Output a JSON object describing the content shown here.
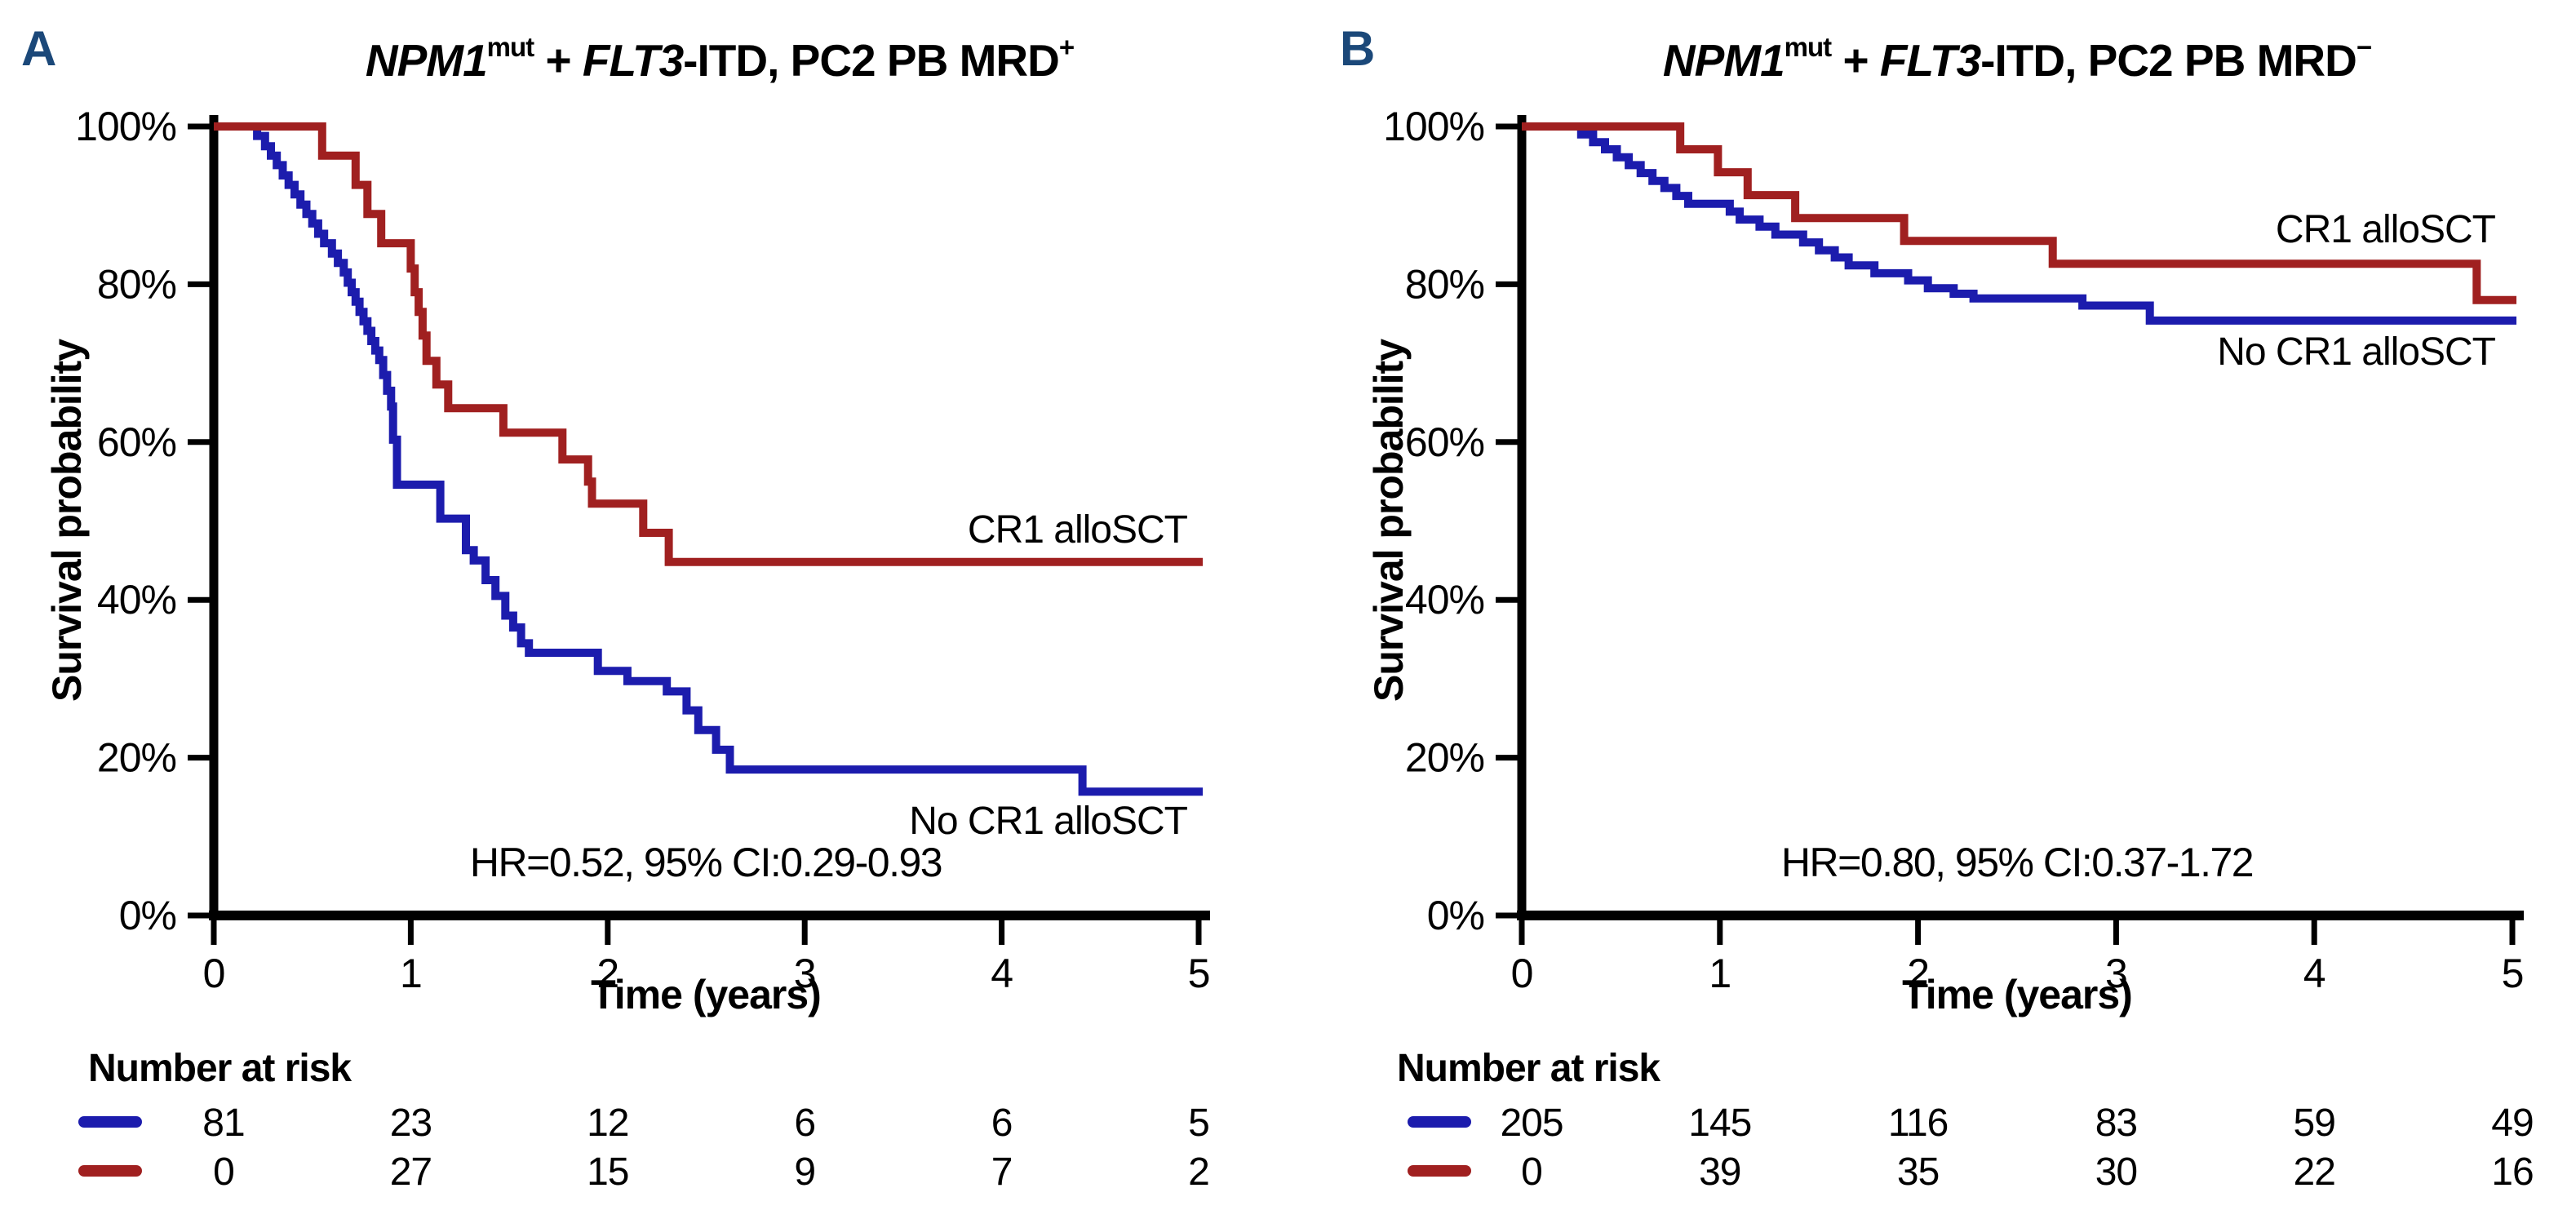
{
  "figure_type": "kaplan-meier-survival-figure",
  "colors": {
    "background": "#ffffff",
    "axis": "#000000",
    "text": "#000000",
    "panel_letter": "#1b4879",
    "blue_series": "#1c1cad",
    "red_series": "#a02020"
  },
  "chart_data": [
    {
      "type": "line",
      "subtype": "kaplan-meier-step",
      "panel_letter": "A",
      "title_parts": {
        "gene1": "NPM1",
        "sup1": "mut",
        "mid": " + ",
        "gene2": "FLT3",
        "tail": "-ITD, PC2 PB MRD",
        "sup2": "+"
      },
      "title_plain": "NPM1mut + FLT3-ITD, PC2 PB MRD+",
      "xlabel": "Time (years)",
      "ylabel": "Survival probability",
      "xlim": [
        0,
        5
      ],
      "ylim": [
        0,
        100
      ],
      "xticks": [
        0,
        1,
        2,
        3,
        4,
        5
      ],
      "ytick_labels": [
        "100%",
        "80%",
        "60%",
        "40%",
        "20%",
        "0%"
      ],
      "annotation": "HR=0.52, 95% CI:0.29-0.93",
      "grid": false,
      "curve_label_position": "right-of-plot",
      "series": [
        {
          "name": "No CR1 alloSCT",
          "color_key": "blue_series",
          "start": [
            0,
            100
          ],
          "drops": [
            [
              0.22,
              98.8
            ],
            [
              0.26,
              97.5
            ],
            [
              0.29,
              96.3
            ],
            [
              0.32,
              95.1
            ],
            [
              0.35,
              93.8
            ],
            [
              0.38,
              92.6
            ],
            [
              0.41,
              91.4
            ],
            [
              0.44,
              90.1
            ],
            [
              0.47,
              88.9
            ],
            [
              0.5,
              87.7
            ],
            [
              0.53,
              86.4
            ],
            [
              0.56,
              85.2
            ],
            [
              0.6,
              83.9
            ],
            [
              0.63,
              82.7
            ],
            [
              0.66,
              81.5
            ],
            [
              0.68,
              80.2
            ],
            [
              0.7,
              79.0
            ],
            [
              0.72,
              77.8
            ],
            [
              0.74,
              76.5
            ],
            [
              0.76,
              75.3
            ],
            [
              0.78,
              74.1
            ],
            [
              0.8,
              72.8
            ],
            [
              0.82,
              71.6
            ],
            [
              0.84,
              70.4
            ],
            [
              0.86,
              68.5
            ],
            [
              0.88,
              66.5
            ],
            [
              0.9,
              64.5
            ],
            [
              0.91,
              60.3
            ],
            [
              0.93,
              54.6
            ],
            [
              1.15,
              50.3
            ],
            [
              1.28,
              46.3
            ],
            [
              1.32,
              45.0
            ],
            [
              1.38,
              42.5
            ],
            [
              1.43,
              40.5
            ],
            [
              1.48,
              38.0
            ],
            [
              1.52,
              36.5
            ],
            [
              1.56,
              34.5
            ],
            [
              1.6,
              33.3
            ],
            [
              1.95,
              31.0
            ],
            [
              2.1,
              29.7
            ],
            [
              2.3,
              28.4
            ],
            [
              2.4,
              26.0
            ],
            [
              2.46,
              23.5
            ],
            [
              2.55,
              21.0
            ],
            [
              2.62,
              18.5
            ],
            [
              4.41,
              15.7
            ]
          ],
          "end_t": 5
        },
        {
          "name": "CR1 alloSCT",
          "color_key": "red_series",
          "start": [
            0,
            100
          ],
          "drops": [
            [
              0.55,
              96.3
            ],
            [
              0.72,
              92.6
            ],
            [
              0.78,
              88.9
            ],
            [
              0.85,
              85.2
            ],
            [
              1.0,
              82.0
            ],
            [
              1.02,
              79.0
            ],
            [
              1.04,
              76.5
            ],
            [
              1.06,
              73.5
            ],
            [
              1.08,
              70.3
            ],
            [
              1.13,
              67.3
            ],
            [
              1.19,
              64.3
            ],
            [
              1.47,
              61.2
            ],
            [
              1.77,
              57.8
            ],
            [
              1.9,
              55.0
            ],
            [
              1.92,
              52.2
            ],
            [
              2.18,
              48.5
            ],
            [
              2.31,
              44.8
            ]
          ],
          "end_t": 5
        }
      ],
      "number_at_risk": {
        "heading": "Number at risk",
        "time_points": [
          0,
          1,
          2,
          3,
          4,
          5
        ],
        "rows": [
          {
            "series": "No CR1 alloSCT",
            "color_key": "blue_series",
            "values": [
              "81",
              "23",
              "12",
              "6",
              "6",
              "5"
            ]
          },
          {
            "series": "CR1 alloSCT",
            "color_key": "red_series",
            "values": [
              "0",
              "27",
              "15",
              "9",
              "7",
              "2"
            ]
          }
        ]
      }
    },
    {
      "type": "line",
      "subtype": "kaplan-meier-step",
      "panel_letter": "B",
      "title_parts": {
        "gene1": "NPM1",
        "sup1": "mut",
        "mid": " + ",
        "gene2": "FLT3",
        "tail": "-ITD, PC2 PB MRD",
        "sup2": "−"
      },
      "title_plain": "NPM1mut + FLT3-ITD, PC2 PB MRD−",
      "xlabel": "Time (years)",
      "ylabel": "Survival probability",
      "xlim": [
        0,
        5
      ],
      "ylim": [
        0,
        100
      ],
      "xticks": [
        0,
        1,
        2,
        3,
        4,
        5
      ],
      "ytick_labels": [
        "100%",
        "80%",
        "60%",
        "40%",
        "20%",
        "0%"
      ],
      "annotation": "HR=0.80, 95% CI:0.37-1.72",
      "grid": false,
      "curve_label_position": "right-of-plot",
      "series": [
        {
          "name": "No CR1 alloSCT",
          "color_key": "blue_series",
          "start": [
            0,
            100
          ],
          "drops": [
            [
              0.3,
              99.0
            ],
            [
              0.36,
              98.0
            ],
            [
              0.42,
              97.1
            ],
            [
              0.48,
              96.1
            ],
            [
              0.54,
              95.1
            ],
            [
              0.6,
              94.1
            ],
            [
              0.66,
              93.1
            ],
            [
              0.72,
              92.2
            ],
            [
              0.78,
              91.2
            ],
            [
              0.84,
              90.2
            ],
            [
              1.05,
              89.2
            ],
            [
              1.1,
              88.2
            ],
            [
              1.2,
              87.3
            ],
            [
              1.28,
              86.3
            ],
            [
              1.42,
              85.3
            ],
            [
              1.5,
              84.3
            ],
            [
              1.58,
              83.4
            ],
            [
              1.65,
              82.4
            ],
            [
              1.78,
              81.4
            ],
            [
              1.95,
              80.5
            ],
            [
              2.05,
              79.5
            ],
            [
              2.18,
              78.8
            ],
            [
              2.28,
              78.2
            ],
            [
              2.83,
              77.3
            ],
            [
              3.17,
              75.4
            ]
          ],
          "end_t": 5
        },
        {
          "name": "CR1 alloSCT",
          "color_key": "red_series",
          "start": [
            0,
            100
          ],
          "drops": [
            [
              0.8,
              97.1
            ],
            [
              0.99,
              94.2
            ],
            [
              1.14,
              91.3
            ],
            [
              1.38,
              88.4
            ],
            [
              1.93,
              85.5
            ],
            [
              2.68,
              82.6
            ],
            [
              4.82,
              78.0
            ]
          ],
          "end_t": 5
        }
      ],
      "number_at_risk": {
        "heading": "Number at risk",
        "time_points": [
          0,
          1,
          2,
          3,
          4,
          5
        ],
        "rows": [
          {
            "series": "No CR1 alloSCT",
            "color_key": "blue_series",
            "values": [
              "205",
              "145",
              "116",
              "83",
              "59",
              "49"
            ]
          },
          {
            "series": "CR1 alloSCT",
            "color_key": "red_series",
            "values": [
              "0",
              "39",
              "35",
              "30",
              "22",
              "16"
            ]
          }
        ]
      }
    }
  ]
}
